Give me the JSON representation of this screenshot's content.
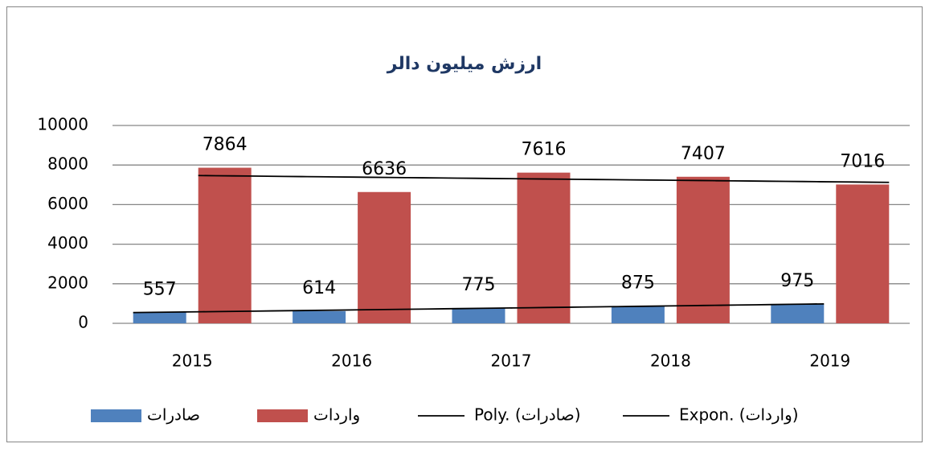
{
  "chart_data": {
    "type": "bar",
    "title": "ارزش میلیون دالر",
    "categories": [
      "2015",
      "2016",
      "2017",
      "2018",
      "2019"
    ],
    "series": [
      {
        "name": "صادرات",
        "color": "#4f81bd",
        "values": [
          557,
          614,
          775,
          875,
          975
        ]
      },
      {
        "name": "واردات",
        "color": "#c0504d",
        "values": [
          7864,
          6636,
          7616,
          7407,
          7016
        ]
      }
    ],
    "trendlines": [
      {
        "name": "Poly. (صادرات)",
        "fit": "poly",
        "order": 2,
        "series": 0,
        "color": "#000000"
      },
      {
        "name": "Expon. (واردات)",
        "fit": "exp",
        "series": 1,
        "color": "#000000"
      }
    ],
    "ylim": [
      0,
      10000
    ],
    "yticks": [
      0,
      2000,
      4000,
      6000,
      8000,
      10000
    ],
    "grid": true,
    "legend": "bottom"
  }
}
